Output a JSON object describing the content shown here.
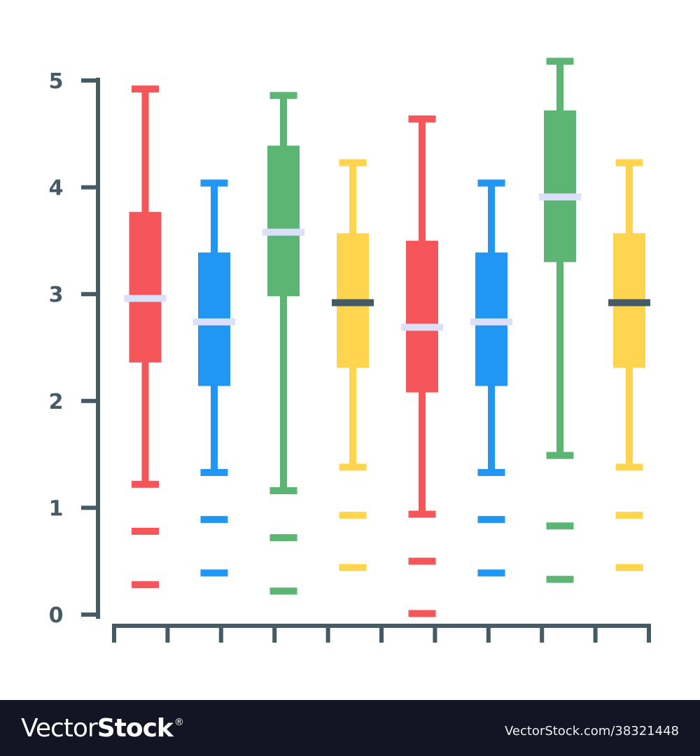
{
  "chart_data": {
    "type": "boxplot",
    "title": "",
    "xlabel": "",
    "ylabel": "",
    "ylim": [
      0,
      5
    ],
    "yticks": [
      0,
      1,
      2,
      3,
      4,
      5
    ],
    "x_tick_count": 11,
    "grid": false,
    "legend": null,
    "boxes": [
      {
        "index": 1,
        "color": "#f4565a",
        "min": 1.22,
        "q1": 2.36,
        "median": 2.96,
        "q3": 3.77,
        "max": 4.92,
        "outliers": [
          0.78,
          0.28
        ],
        "median_color": "#dcdffa"
      },
      {
        "index": 2,
        "color": "#2196f3",
        "min": 1.33,
        "q1": 2.14,
        "median": 2.74,
        "q3": 3.39,
        "max": 4.04,
        "outliers": [
          0.89,
          0.39
        ],
        "median_color": "#dcdffa"
      },
      {
        "index": 3,
        "color": "#5cb573",
        "min": 1.16,
        "q1": 2.98,
        "median": 3.58,
        "q3": 4.39,
        "max": 4.86,
        "outliers": [
          0.72,
          0.22
        ],
        "median_color": "#dcdffa"
      },
      {
        "index": 4,
        "color": "#ffd54f",
        "min": 1.38,
        "q1": 2.31,
        "median": 2.92,
        "q3": 3.57,
        "max": 4.23,
        "outliers": [
          0.93,
          0.44
        ],
        "median_color": "#455a64"
      },
      {
        "index": 5,
        "color": "#f4565a",
        "min": 0.94,
        "q1": 2.08,
        "median": 2.69,
        "q3": 3.5,
        "max": 4.64,
        "outliers": [
          0.5,
          0.01
        ],
        "median_color": "#dcdffa"
      },
      {
        "index": 6,
        "color": "#2196f3",
        "min": 1.33,
        "q1": 2.14,
        "median": 2.74,
        "q3": 3.39,
        "max": 4.04,
        "outliers": [
          0.89,
          0.39
        ],
        "median_color": "#dcdffa"
      },
      {
        "index": 7,
        "color": "#5cb573",
        "min": 1.49,
        "q1": 3.3,
        "median": 3.91,
        "q3": 4.72,
        "max": 5.18,
        "outliers": [
          0.83,
          0.33
        ],
        "median_color": "#dcdffa"
      },
      {
        "index": 8,
        "color": "#ffd54f",
        "min": 1.38,
        "q1": 2.31,
        "median": 2.92,
        "q3": 3.57,
        "max": 4.23,
        "outliers": [
          0.93,
          0.44
        ],
        "median_color": "#455a64"
      }
    ]
  },
  "colors": {
    "axis": "#455a64",
    "red": "#f4565a",
    "blue": "#2196f3",
    "green": "#5cb573",
    "yellow": "#ffd54f",
    "median_light": "#dcdffa",
    "footer_bg": "#131424"
  },
  "footer": {
    "brand_light": "Vector",
    "brand_bold": "Stock",
    "brand_reg": "®",
    "url": "VectorStock.com/38321448"
  }
}
